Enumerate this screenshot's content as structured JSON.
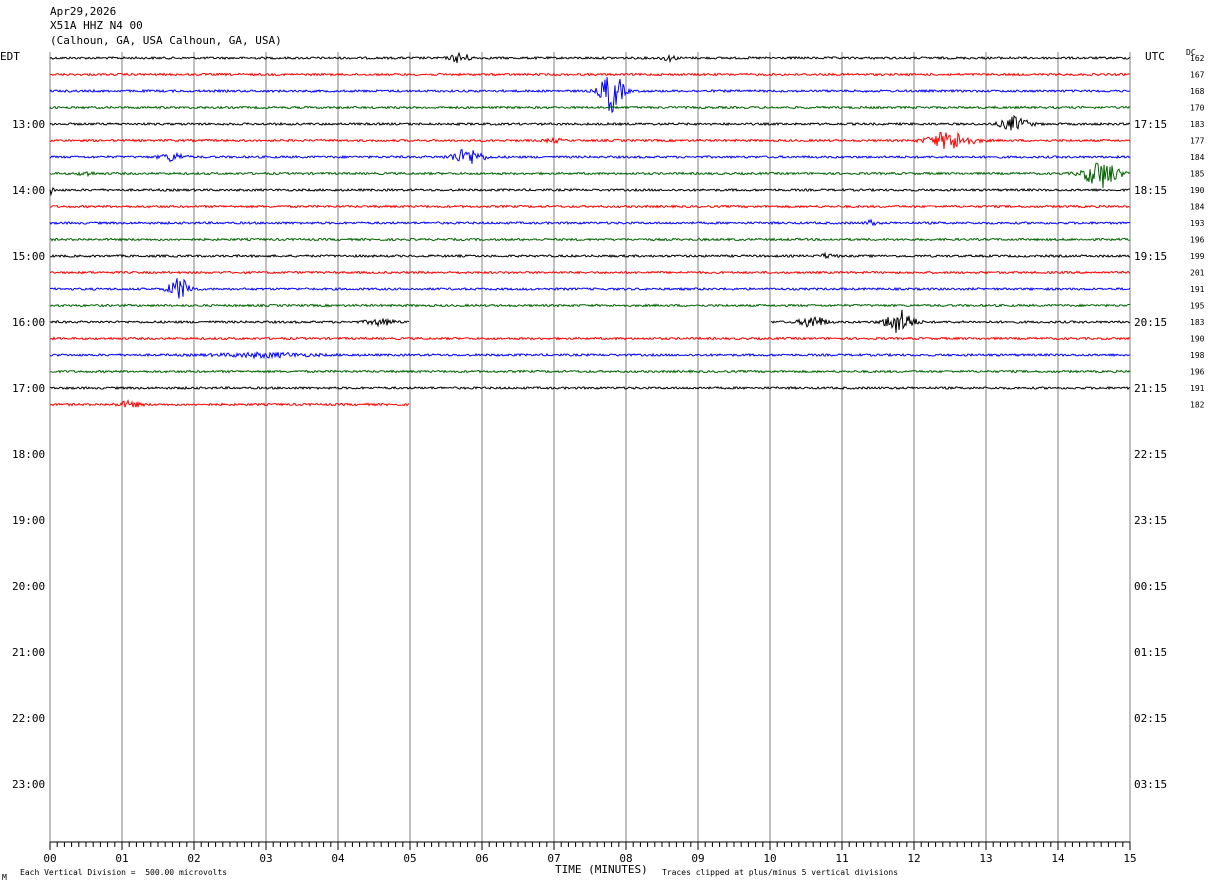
{
  "header": {
    "date": "Apr29,2026",
    "station": "X51A HHZ N4 00",
    "location": "(Calhoun, GA, USA Calhoun, GA, USA)"
  },
  "left_tz": "EDT",
  "right_tz": "UTC",
  "dc_header": "DC",
  "edt_labels": [
    "13:00",
    "14:00",
    "15:00",
    "16:00",
    "17:00",
    "18:00",
    "19:00",
    "20:00",
    "21:00",
    "22:00",
    "23:00"
  ],
  "utc_labels": [
    "17:15",
    "18:15",
    "19:15",
    "20:15",
    "21:15",
    "22:15",
    "23:15",
    "00:15",
    "01:15",
    "02:15",
    "03:15"
  ],
  "dc_values": [
    "162",
    "167",
    "168",
    "170",
    "183",
    "177",
    "184",
    "185",
    "190",
    "184",
    "193",
    "196",
    "199",
    "201",
    "191",
    "195",
    "183",
    "190",
    "198",
    "196",
    "191",
    "182"
  ],
  "trace_colors": [
    "#000000",
    "#ff0000",
    "#0000ff",
    "#006400"
  ],
  "footer": {
    "scale_note": "Each Vertical Division =  500.00 microvolts",
    "clip_note": "Traces clipped at plus/minus 5 vertical divisions",
    "mark": "M"
  },
  "chart_data": {
    "type": "line",
    "title": "X51A HHZ N4 00",
    "xlabel": "TIME (MINUTES)",
    "ylabel": "",
    "x_ticks": [
      "00",
      "01",
      "02",
      "03",
      "04",
      "05",
      "06",
      "07",
      "08",
      "09",
      "10",
      "11",
      "12",
      "13",
      "14",
      "15"
    ],
    "xlim": [
      0,
      15
    ],
    "trace_interval_minutes": 15,
    "trace_count": 22,
    "gaps": [
      {
        "trace": 16,
        "from_min": 5.0,
        "to_min": 10.0
      },
      {
        "trace": 21,
        "from_min": 5.0,
        "to_min": 15.0
      }
    ],
    "events": [
      {
        "trace": 0,
        "min": 5.7,
        "amp": 5,
        "width": 0.12
      },
      {
        "trace": 0,
        "min": 8.6,
        "amp": 2.5,
        "width": 0.1
      },
      {
        "trace": 2,
        "min": 7.8,
        "amp": 22,
        "width": 0.14
      },
      {
        "trace": 4,
        "min": 13.4,
        "amp": 7,
        "width": 0.18
      },
      {
        "trace": 5,
        "min": 12.5,
        "amp": 9,
        "width": 0.28
      },
      {
        "trace": 5,
        "min": 7.0,
        "amp": 2,
        "width": 0.1
      },
      {
        "trace": 6,
        "min": 1.7,
        "amp": 4,
        "width": 0.15
      },
      {
        "trace": 6,
        "min": 5.8,
        "amp": 8,
        "width": 0.2
      },
      {
        "trace": 7,
        "min": 14.6,
        "amp": 14,
        "width": 0.22
      },
      {
        "trace": 7,
        "min": 0.5,
        "amp": 2,
        "width": 0.1
      },
      {
        "trace": 8,
        "min": 0.02,
        "amp": 5,
        "width": 0.03
      },
      {
        "trace": 10,
        "min": 11.4,
        "amp": 3,
        "width": 0.06
      },
      {
        "trace": 12,
        "min": 10.8,
        "amp": 2,
        "width": 0.1
      },
      {
        "trace": 14,
        "min": 1.8,
        "amp": 11,
        "width": 0.14
      },
      {
        "trace": 16,
        "min": 4.6,
        "amp": 3,
        "width": 0.18
      },
      {
        "trace": 16,
        "min": 10.6,
        "amp": 6,
        "width": 0.16
      },
      {
        "trace": 16,
        "min": 11.8,
        "amp": 12,
        "width": 0.18
      },
      {
        "trace": 18,
        "min": 3.0,
        "amp": 2,
        "width": 0.6
      },
      {
        "trace": 21,
        "min": 1.1,
        "amp": 3,
        "width": 0.15
      }
    ]
  }
}
